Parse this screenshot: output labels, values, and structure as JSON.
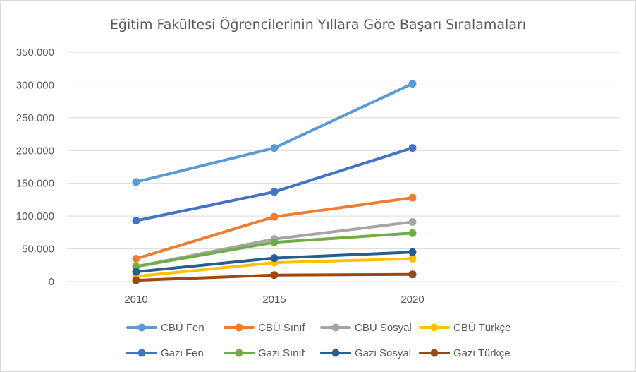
{
  "chart_data": {
    "type": "line",
    "title": "Eğitim Fakültesi  Öğrencilerinin Yıllara Göre Başarı Sıralamaları",
    "xlabel": "",
    "ylabel": "",
    "categories": [
      "2010",
      "2015",
      "2020"
    ],
    "ylim": [
      0,
      350000
    ],
    "yticks": [
      0,
      50000,
      100000,
      150000,
      200000,
      250000,
      300000,
      350000
    ],
    "ytick_labels": [
      "0",
      "50.000",
      "100.000",
      "150.000",
      "200.000",
      "250.000",
      "300.000",
      "350.000"
    ],
    "grid": true,
    "legend_position": "bottom",
    "series": [
      {
        "name": "CBÜ Fen",
        "color": "#5b9bd5",
        "values": [
          152000,
          204000,
          302000
        ]
      },
      {
        "name": "CBÜ Sınıf",
        "color": "#ed7d31",
        "values": [
          35000,
          99000,
          128000
        ]
      },
      {
        "name": "CBÜ Sosyal",
        "color": "#a5a5a5",
        "values": [
          23000,
          65000,
          91000
        ]
      },
      {
        "name": "CBÜ Türkçe",
        "color": "#ffc000",
        "values": [
          8000,
          29000,
          35000
        ]
      },
      {
        "name": "Gazi Fen",
        "color": "#4472c4",
        "values": [
          93000,
          137000,
          204000
        ]
      },
      {
        "name": "Gazi Sınıf",
        "color": "#70ad47",
        "values": [
          23000,
          60000,
          74000
        ]
      },
      {
        "name": "Gazi Sosyal",
        "color": "#255e91",
        "values": [
          15000,
          36000,
          45000
        ]
      },
      {
        "name": "Gazi Türkçe",
        "color": "#9e480e",
        "values": [
          2000,
          10000,
          11000
        ]
      }
    ]
  }
}
